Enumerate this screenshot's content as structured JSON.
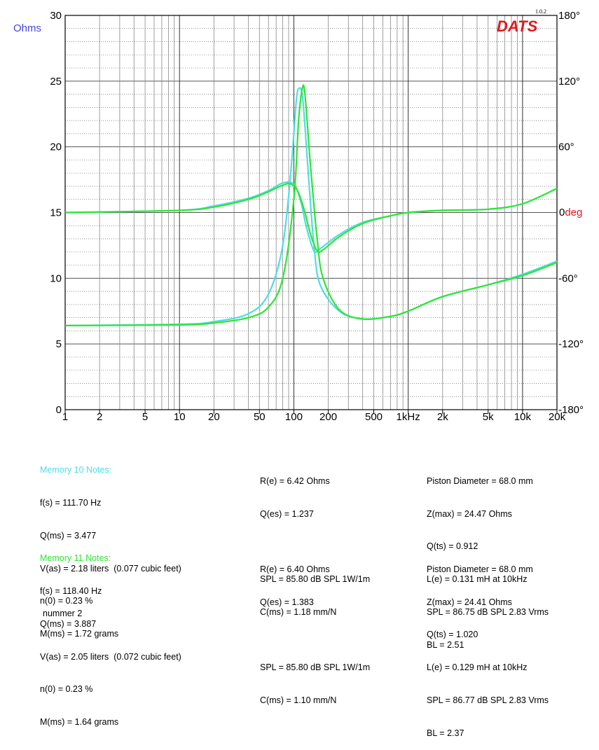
{
  "chart_data": {
    "type": "line",
    "x_scale": "log",
    "xlim": [
      1,
      20000
    ],
    "x_ticks": [
      1,
      2,
      5,
      10,
      20,
      50,
      100,
      200,
      500,
      1000,
      2000,
      5000,
      10000,
      20000
    ],
    "x_tick_labels": [
      "1",
      "2",
      "5",
      "10",
      "20",
      "50",
      "100",
      "200",
      "500",
      "1kHz",
      "2k",
      "5k",
      "10k",
      "20k"
    ],
    "y_left": {
      "label": "Ohms",
      "ylim": [
        0,
        30
      ],
      "ticks": [
        0,
        5,
        10,
        15,
        20,
        25,
        30
      ]
    },
    "y_right": {
      "label_value": "0",
      "label_unit": "deg",
      "ylim": [
        -180,
        180
      ],
      "ticks": [
        -180,
        -120,
        -60,
        0,
        60,
        120,
        180
      ],
      "tick_labels": [
        "-180°",
        "-120°",
        "-60°",
        "0",
        "60°",
        "120°",
        "180°"
      ]
    },
    "grid": true,
    "series": [
      {
        "name": "Memory 10",
        "quantity": "impedance",
        "axis": "left",
        "color": "#4ddde6",
        "x": [
          1,
          10,
          20,
          40,
          60,
          80,
          95,
          105,
          111.7,
          120,
          135,
          150,
          170,
          250,
          400,
          700,
          1000,
          2000,
          5000,
          10000,
          20000
        ],
        "y": [
          6.4,
          6.5,
          6.7,
          7.3,
          8.8,
          12.5,
          18.5,
          23.5,
          24.47,
          23.5,
          17.5,
          12.5,
          9.5,
          7.5,
          6.9,
          7.1,
          7.5,
          8.6,
          9.5,
          10.3,
          11.3
        ]
      },
      {
        "name": "Memory 10",
        "quantity": "phase",
        "axis": "right",
        "color": "#4ddde6",
        "x": [
          1,
          10,
          20,
          40,
          60,
          80,
          100,
          115,
          130,
          150,
          170,
          250,
          400,
          700,
          1000,
          2000,
          5000,
          10000,
          20000
        ],
        "y": [
          0,
          2,
          6,
          13,
          20,
          27,
          26,
          10,
          -15,
          -35,
          -33,
          -20,
          -9,
          -3,
          0,
          2,
          3,
          8,
          22
        ]
      },
      {
        "name": "Memory 11",
        "quantity": "impedance",
        "axis": "left",
        "color": "#2ee533",
        "x": [
          1,
          10,
          20,
          40,
          60,
          80,
          100,
          110,
          118.4,
          125,
          140,
          160,
          180,
          250,
          400,
          700,
          1000,
          2000,
          5000,
          10000,
          20000
        ],
        "y": [
          6.4,
          6.45,
          6.6,
          7.0,
          7.8,
          10.0,
          16.0,
          22.0,
          24.41,
          24.0,
          18.5,
          13.0,
          10.0,
          7.6,
          6.9,
          7.1,
          7.5,
          8.6,
          9.5,
          10.2,
          11.2
        ]
      },
      {
        "name": "Memory 11",
        "quantity": "phase",
        "axis": "right",
        "color": "#2ee533",
        "x": [
          1,
          10,
          20,
          40,
          60,
          80,
          95,
          110,
          125,
          140,
          160,
          180,
          250,
          400,
          700,
          1000,
          2000,
          5000,
          10000,
          20000
        ],
        "y": [
          0,
          2,
          5,
          12,
          19,
          25,
          26,
          18,
          0,
          -20,
          -35,
          -34,
          -22,
          -10,
          -3,
          0,
          2,
          3,
          8,
          22
        ]
      }
    ]
  },
  "logo": {
    "text": "DATS",
    "version": "1.0.2",
    "color": "#e0191c"
  },
  "colors": {
    "axis_left_label": "#4444dd",
    "deg_label": "#e0191c",
    "memory10": "#4ddde6",
    "memory11": "#2ee533"
  },
  "memory10": {
    "title": "Memory 10 Notes:",
    "col1": [
      "f(s) = 111.70 Hz",
      "Q(ms) = 3.477",
      "V(as) = 2.18 liters  (0.077 cubic feet)",
      "n(0) = 0.23 %",
      "M(ms) = 1.72 grams"
    ],
    "col2": [
      "R(e) = 6.42 Ohms",
      "Q(es) = 1.237",
      "",
      "SPL = 85.80 dB SPL 1W/1m",
      "C(ms) = 1.18 mm/N"
    ],
    "col3": [
      "Piston Diameter = 68.0 mm",
      "Z(max) = 24.47 Ohms",
      "Q(ts) = 0.912",
      "L(e) = 0.131 mH at 10kHz",
      "SPL = 86.75 dB SPL 2.83 Vrms",
      "BL = 2.51"
    ]
  },
  "memory11": {
    "title": "Memory 11 Notes:",
    "col1": [
      "f(s) = 118.40 Hz",
      "Q(ms) = 3.887",
      "V(as) = 2.05 liters  (0.072 cubic feet)",
      "n(0) = 0.23 %",
      "M(ms) = 1.64 grams"
    ],
    "col2": [
      "R(e) = 6.40 Ohms",
      "Q(es) = 1.383",
      "",
      "SPL = 85.80 dB SPL 1W/1m",
      "C(ms) = 1.10 mm/N"
    ],
    "col3": [
      "Piston Diameter = 68.0 mm",
      "Z(max) = 24.41 Ohms",
      "Q(ts) = 1.020",
      "L(e) = 0.129 mH at 10kHz",
      "SPL = 86.77 dB SPL 2.83 Vrms",
      "BL = 2.37"
    ]
  },
  "footer": "nummer 2"
}
